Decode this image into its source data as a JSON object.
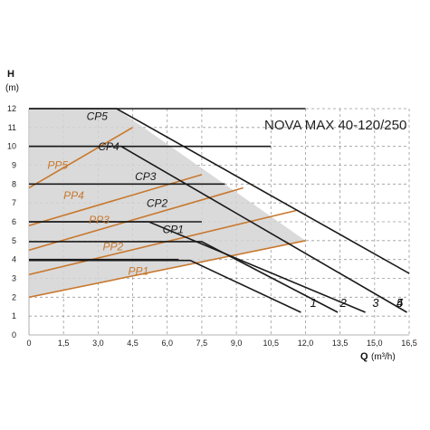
{
  "chart_data": {
    "type": "line",
    "title": "NOVA MAX 40-120/250",
    "xlabel": "Q",
    "xunit": "(m³/h)",
    "ylabel": "H",
    "yunit": "(m)",
    "xlim": [
      0,
      16.5
    ],
    "ylim": [
      0,
      12
    ],
    "x_ticks": [
      0,
      1.5,
      3.0,
      4.5,
      6.0,
      7.5,
      9.0,
      10.5,
      12.0,
      13.5,
      15.0,
      16.5
    ],
    "x_tick_labels": [
      "0",
      "1,5",
      "3,0",
      "4,5",
      "6,0",
      "7,5",
      "9,0",
      "10,5",
      "12,0",
      "13,5",
      "15,0",
      "16,5"
    ],
    "y_ticks": [
      0,
      1,
      2,
      3,
      4,
      5,
      6,
      7,
      8,
      9,
      10,
      11,
      12
    ],
    "y_tick_labels": [
      "0",
      "1",
      "2",
      "3",
      "4",
      "5",
      "6",
      "7",
      "8",
      "9",
      "10",
      "11",
      "12"
    ],
    "grid": true,
    "colors": {
      "speed_curves": "#1a1a1a",
      "proportional_curves": "#c8782e",
      "envelope_fill": "#d4d4d4",
      "grid": "#9a9a9a"
    },
    "speed_curves": [
      {
        "name": "1",
        "points": [
          [
            0,
            3.95
          ],
          [
            7.0,
            3.95
          ],
          [
            11.8,
            1.2
          ]
        ]
      },
      {
        "name": "2",
        "points": [
          [
            0,
            4.95
          ],
          [
            7.5,
            4.95
          ],
          [
            13.4,
            1.2
          ]
        ]
      },
      {
        "name": "3",
        "points": [
          [
            0,
            6.0
          ],
          [
            5.2,
            6.0
          ],
          [
            14.6,
            1.2
          ]
        ]
      },
      {
        "name": "4",
        "points": [
          [
            0,
            10.0
          ],
          [
            4.0,
            10.0
          ],
          [
            16.4,
            1.2
          ]
        ]
      },
      {
        "name": "5",
        "points": [
          [
            0,
            12.0
          ],
          [
            3.8,
            12.0
          ],
          [
            19.5,
            1.2
          ]
        ]
      }
    ],
    "constant_pressure_curves": [
      {
        "name": "CP1",
        "points": [
          [
            0,
            4.0
          ],
          [
            6.5,
            4.0
          ]
        ]
      },
      {
        "name": "CP2",
        "points": [
          [
            0,
            6.0
          ],
          [
            7.5,
            6.0
          ]
        ]
      },
      {
        "name": "CP3",
        "points": [
          [
            0,
            8.0
          ],
          [
            8.5,
            8.0
          ]
        ]
      },
      {
        "name": "CP4",
        "points": [
          [
            0,
            10.0
          ],
          [
            10.5,
            10.0
          ]
        ]
      },
      {
        "name": "CP5",
        "points": [
          [
            0,
            12.0
          ],
          [
            12.0,
            12.0
          ]
        ]
      }
    ],
    "proportional_pressure_curves": [
      {
        "name": "PP1",
        "points": [
          [
            0,
            2.0
          ],
          [
            12.0,
            5.0
          ]
        ]
      },
      {
        "name": "PP2",
        "points": [
          [
            0,
            3.2
          ],
          [
            11.6,
            6.6
          ]
        ]
      },
      {
        "name": "PP3",
        "points": [
          [
            0,
            4.5
          ],
          [
            9.3,
            7.8
          ]
        ]
      },
      {
        "name": "PP4",
        "points": [
          [
            0,
            5.8
          ],
          [
            7.5,
            8.5
          ]
        ]
      },
      {
        "name": "PP5",
        "points": [
          [
            0,
            7.8
          ],
          [
            4.5,
            11.0
          ]
        ]
      }
    ],
    "envelope": [
      [
        0,
        2.0
      ],
      [
        0,
        12.0
      ],
      [
        3.8,
        12.0
      ],
      [
        12.0,
        5.0
      ],
      [
        0,
        2.0
      ]
    ],
    "curve_labels": [
      {
        "text": "CP5",
        "color": "#1a1a1a",
        "at": [
          2.5,
          11.4
        ]
      },
      {
        "text": "CP4",
        "color": "#1a1a1a",
        "at": [
          3.0,
          9.8
        ]
      },
      {
        "text": "CP3",
        "color": "#1a1a1a",
        "at": [
          4.6,
          8.2
        ]
      },
      {
        "text": "CP2",
        "color": "#1a1a1a",
        "at": [
          5.1,
          6.8
        ]
      },
      {
        "text": "CP1",
        "color": "#1a1a1a",
        "at": [
          5.8,
          5.4
        ]
      },
      {
        "text": "PP5",
        "color": "#c8782e",
        "at": [
          0.8,
          8.8
        ]
      },
      {
        "text": "PP4",
        "color": "#c8782e",
        "at": [
          1.5,
          7.2
        ]
      },
      {
        "text": "PP3",
        "color": "#c8782e",
        "at": [
          2.6,
          5.9
        ]
      },
      {
        "text": "PP2",
        "color": "#c8782e",
        "at": [
          3.2,
          4.5
        ]
      },
      {
        "text": "PP1",
        "color": "#c8782e",
        "at": [
          4.3,
          3.2
        ]
      }
    ],
    "end_labels": [
      {
        "text": "1",
        "at": [
          12.2,
          1.5
        ]
      },
      {
        "text": "2",
        "at": [
          13.5,
          1.5
        ]
      },
      {
        "text": "3",
        "at": [
          14.9,
          1.5
        ]
      },
      {
        "text": "4",
        "at": [
          16.6,
          1.5
        ]
      },
      {
        "text": "5",
        "at": [
          19.7,
          1.5
        ]
      }
    ]
  }
}
